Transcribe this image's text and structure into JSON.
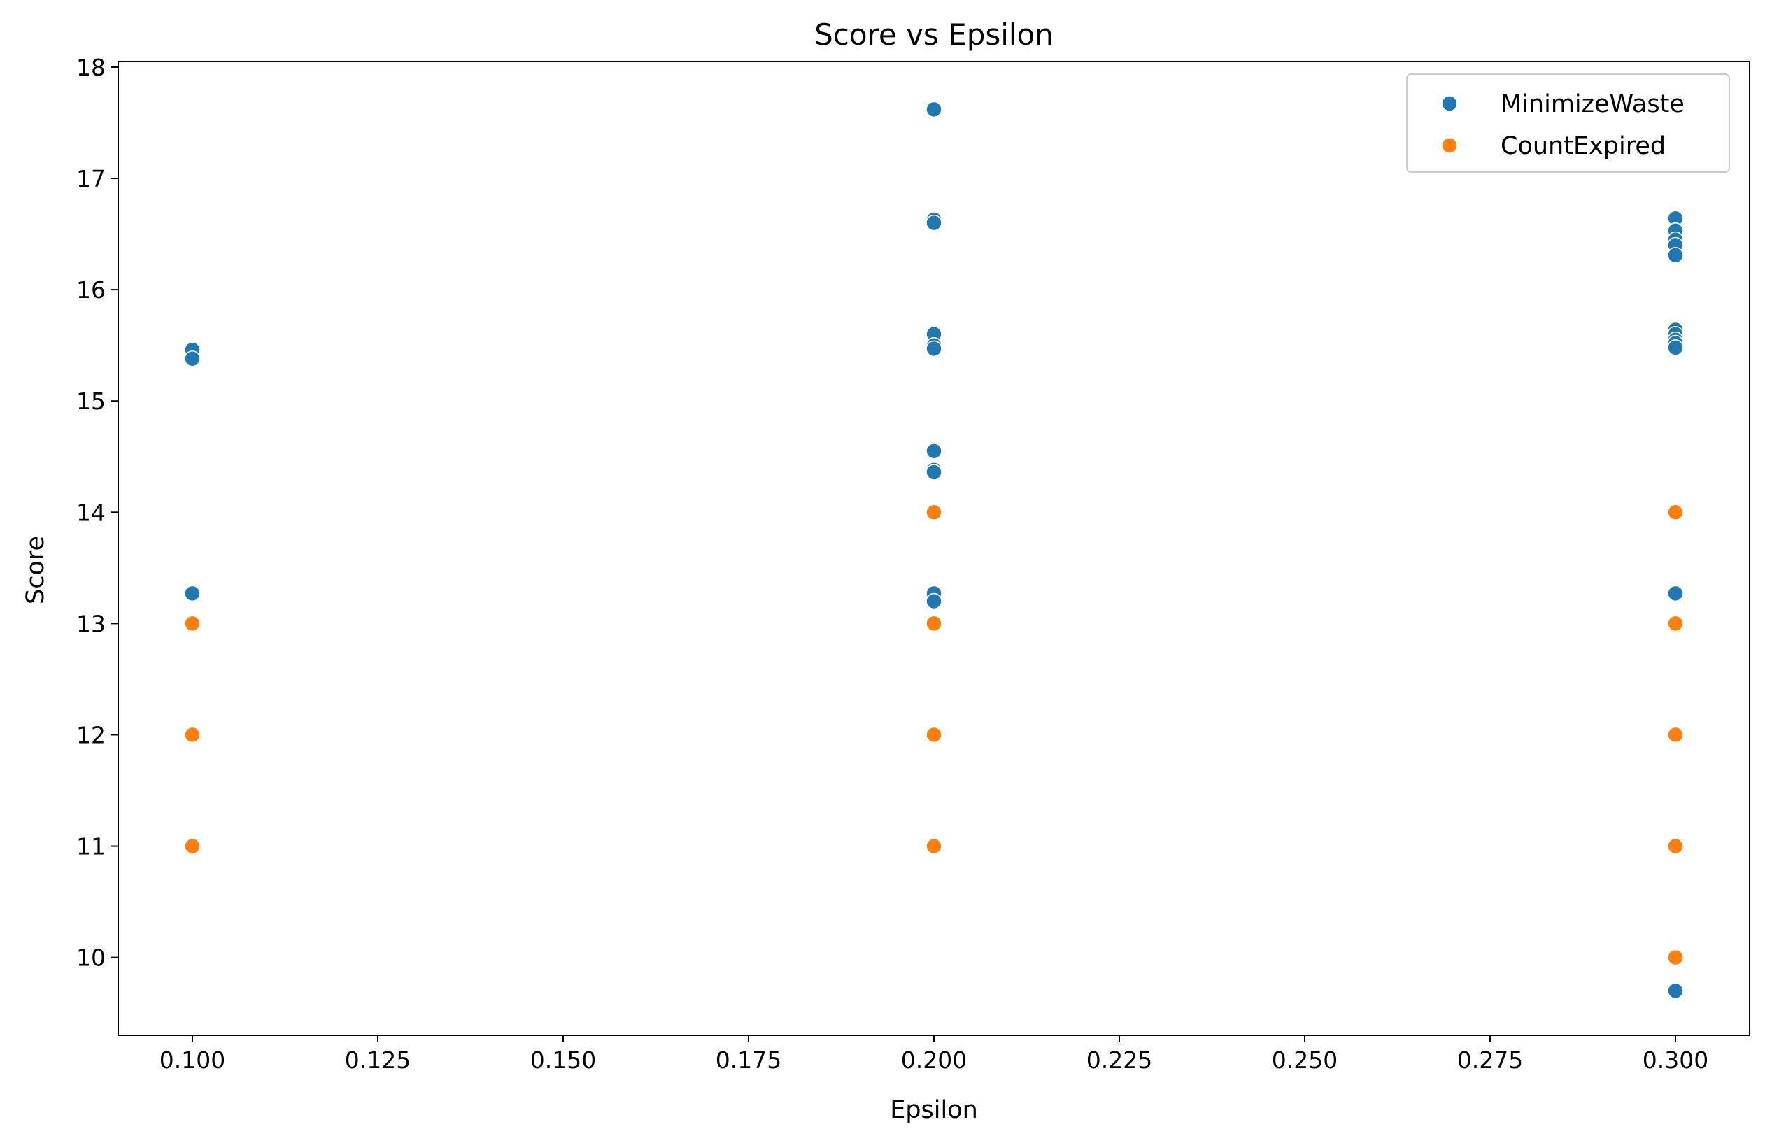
{
  "chart_data": {
    "type": "scatter",
    "title": "Score vs Epsilon",
    "xlabel": "Epsilon",
    "ylabel": "Score",
    "xlim": [
      0.09,
      0.31
    ],
    "ylim": [
      9.3,
      18.05
    ],
    "xticks": [
      0.1,
      0.125,
      0.15,
      0.175,
      0.2,
      0.225,
      0.25,
      0.275,
      0.3
    ],
    "xtick_labels": [
      "0.100",
      "0.125",
      "0.150",
      "0.175",
      "0.200",
      "0.225",
      "0.250",
      "0.275",
      "0.300"
    ],
    "yticks": [
      10,
      11,
      12,
      13,
      14,
      15,
      16,
      17,
      18
    ],
    "ytick_labels": [
      "10",
      "11",
      "12",
      "13",
      "14",
      "15",
      "16",
      "17",
      "18"
    ],
    "grid": false,
    "legend_position": "top-right",
    "series": [
      {
        "name": "MinimizeWaste",
        "color": "#1f77b4",
        "points": [
          [
            0.1,
            15.46
          ],
          [
            0.1,
            15.38
          ],
          [
            0.1,
            13.27
          ],
          [
            0.2,
            17.62
          ],
          [
            0.2,
            16.63
          ],
          [
            0.2,
            16.6
          ],
          [
            0.2,
            15.6
          ],
          [
            0.2,
            15.5
          ],
          [
            0.2,
            15.47
          ],
          [
            0.2,
            14.55
          ],
          [
            0.2,
            14.38
          ],
          [
            0.2,
            14.36
          ],
          [
            0.2,
            13.27
          ],
          [
            0.2,
            13.2
          ],
          [
            0.3,
            16.64
          ],
          [
            0.3,
            16.53
          ],
          [
            0.3,
            16.45
          ],
          [
            0.3,
            16.4
          ],
          [
            0.3,
            16.31
          ],
          [
            0.3,
            15.64
          ],
          [
            0.3,
            15.6
          ],
          [
            0.3,
            15.55
          ],
          [
            0.3,
            15.52
          ],
          [
            0.3,
            15.48
          ],
          [
            0.3,
            13.27
          ],
          [
            0.3,
            9.7
          ]
        ]
      },
      {
        "name": "CountExpired",
        "color": "#ff7f0e",
        "points": [
          [
            0.1,
            13
          ],
          [
            0.1,
            12
          ],
          [
            0.1,
            11
          ],
          [
            0.2,
            14
          ],
          [
            0.2,
            13
          ],
          [
            0.2,
            12
          ],
          [
            0.2,
            11
          ],
          [
            0.3,
            14
          ],
          [
            0.3,
            13
          ],
          [
            0.3,
            12
          ],
          [
            0.3,
            11
          ],
          [
            0.3,
            10
          ]
        ]
      }
    ]
  }
}
